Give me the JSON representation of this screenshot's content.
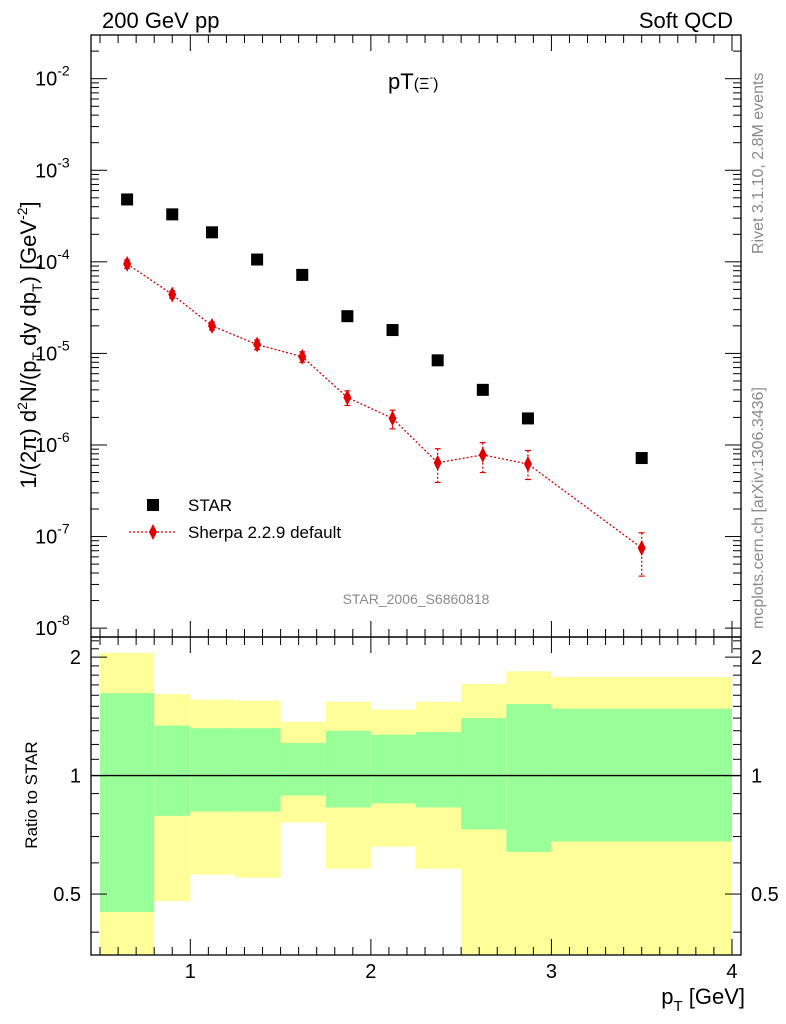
{
  "header": {
    "left": "200 GeV pp",
    "right": "Soft QCD"
  },
  "side_text": {
    "rivet": "Rivet 3.1.10,  2.8M events",
    "mcplots": "mcplots.cern.ch [arXiv:1306.3436]"
  },
  "analysis_id": "STAR_2006_S6860818",
  "colors": {
    "star": "#000000",
    "sherpa": "#e00000",
    "band_inner": "#99ff99",
    "band_outer": "#ffff99"
  },
  "chart_data": [
    {
      "type": "scatter",
      "title": "pT(Ξ⁻)",
      "xlabel": "p_T [GeV]",
      "ylabel": "1/(2π) d²N/(p_T dy dp_T) [GeV⁻²]",
      "xlim": [
        0.45,
        4.05
      ],
      "ylim": [
        8e-09,
        0.03
      ],
      "yscale": "log",
      "legend_position": "lower-left",
      "y_tick_labels": [
        "10⁻⁸",
        "10⁻⁷",
        "10⁻⁶",
        "10⁻⁵",
        "10⁻⁴",
        "10⁻³",
        "10⁻²"
      ],
      "series": [
        {
          "name": "STAR",
          "marker": "square",
          "x": [
            0.65,
            0.9,
            1.12,
            1.37,
            1.62,
            1.87,
            2.12,
            2.37,
            2.62,
            2.87,
            3.5
          ],
          "y": [
            0.00048,
            0.00033,
            0.00021,
            0.000106,
            7.2e-05,
            2.55e-05,
            1.8e-05,
            8.4e-06,
            4e-06,
            1.95e-06,
            7.2e-07
          ]
        },
        {
          "name": "Sherpa 2.2.9 default",
          "marker": "diamond",
          "line": "dotted",
          "x": [
            0.65,
            0.9,
            1.12,
            1.37,
            1.62,
            1.87,
            2.12,
            2.37,
            2.62,
            2.87,
            3.5
          ],
          "y": [
            9.5e-05,
            4.4e-05,
            2e-05,
            1.25e-05,
            9.2e-06,
            3.3e-06,
            1.95e-06,
            6.4e-07,
            7.8e-07,
            6.2e-07,
            7.5e-08
          ],
          "y_err_low": [
            1e-05,
            4e-06,
            2e-06,
            1.5e-06,
            1.2e-06,
            6e-07,
            4.5e-07,
            2.5e-07,
            2.8e-07,
            2e-07,
            3.8e-08
          ],
          "y_err_high": [
            1e-05,
            4e-06,
            2e-06,
            1.5e-06,
            1.2e-06,
            6e-07,
            4.5e-07,
            2.7e-07,
            2.8e-07,
            2.5e-07,
            3.5e-08
          ]
        }
      ]
    },
    {
      "type": "area",
      "title": "",
      "xlabel": "p_T [GeV]",
      "ylabel": "Ratio to STAR",
      "xlim": [
        0.45,
        4.05
      ],
      "ylim": [
        0.35,
        2.25
      ],
      "x_ticks": [
        1,
        2,
        3,
        4
      ],
      "y_ticks": [
        0.5,
        1,
        2
      ],
      "reference_line": 1,
      "bins": [
        {
          "x0": 0.5,
          "x1": 0.8,
          "inner": [
            0.45,
            1.62
          ],
          "outer": [
            0.35,
            2.05
          ]
        },
        {
          "x0": 0.8,
          "x1": 1.0,
          "inner": [
            0.79,
            1.34
          ],
          "outer": [
            0.48,
            1.61
          ]
        },
        {
          "x0": 1.0,
          "x1": 1.25,
          "inner": [
            0.81,
            1.32
          ],
          "outer": [
            0.56,
            1.56
          ]
        },
        {
          "x0": 1.25,
          "x1": 1.5,
          "inner": [
            0.81,
            1.32
          ],
          "outer": [
            0.55,
            1.55
          ]
        },
        {
          "x0": 1.5,
          "x1": 1.75,
          "inner": [
            0.89,
            1.21
          ],
          "outer": [
            0.76,
            1.37
          ]
        },
        {
          "x0": 1.75,
          "x1": 2.0,
          "inner": [
            0.83,
            1.3
          ],
          "outer": [
            0.58,
            1.54
          ]
        },
        {
          "x0": 2.0,
          "x1": 2.25,
          "inner": [
            0.85,
            1.27
          ],
          "outer": [
            0.66,
            1.47
          ]
        },
        {
          "x0": 2.25,
          "x1": 2.5,
          "inner": [
            0.83,
            1.29
          ],
          "outer": [
            0.58,
            1.54
          ]
        },
        {
          "x0": 2.5,
          "x1": 2.75,
          "inner": [
            0.73,
            1.4
          ],
          "outer": [
            0.35,
            1.71
          ]
        },
        {
          "x0": 2.75,
          "x1": 3.0,
          "inner": [
            0.64,
            1.52
          ],
          "outer": [
            0.35,
            1.84
          ]
        },
        {
          "x0": 3.0,
          "x1": 4.0,
          "inner": [
            0.68,
            1.48
          ],
          "outer": [
            0.35,
            1.78
          ]
        }
      ]
    }
  ]
}
